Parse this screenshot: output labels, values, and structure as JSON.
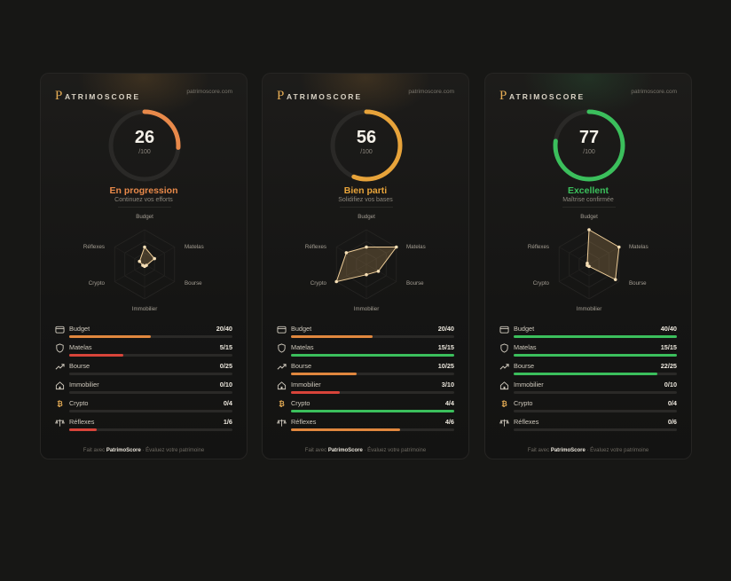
{
  "brand": {
    "name": "ATRIMOSCORE",
    "mark": "P",
    "site": "patrimoscore.com"
  },
  "colors": {
    "orange": "#e0873e",
    "amber": "#e7a33a",
    "green": "#3bbf5c",
    "red": "#d8443a",
    "track": "#2a2927"
  },
  "cards": [
    {
      "score": "26",
      "denominator": "/100",
      "score_value": 26,
      "status": "En progression",
      "status_color": "#e8894a",
      "subtitle": "Continuez vos efforts",
      "radar_labels": [
        "Budget",
        "Matelas",
        "Bourse",
        "Immobilier",
        "Crypto",
        "Réflexes"
      ],
      "radar_values": [
        0.5,
        0.33,
        0,
        0,
        0,
        0.17
      ],
      "metrics": [
        {
          "icon": "wallet-icon",
          "label": "Budget",
          "value": "20/40",
          "fraction": 0.5,
          "color": "#e0873e"
        },
        {
          "icon": "shield-icon",
          "label": "Matelas",
          "value": "5/15",
          "fraction": 0.333,
          "color": "#d8443a"
        },
        {
          "icon": "trend-up-icon",
          "label": "Bourse",
          "value": "0/25",
          "fraction": 0,
          "color": "#d8443a"
        },
        {
          "icon": "home-icon",
          "label": "Immobilier",
          "value": "0/10",
          "fraction": 0,
          "color": "#d8443a"
        },
        {
          "icon": "bitcoin-icon",
          "label": "Crypto",
          "value": "0/4",
          "fraction": 0,
          "color": "#d8443a"
        },
        {
          "icon": "scale-icon",
          "label": "Réflexes",
          "value": "1/6",
          "fraction": 0.167,
          "color": "#d8443a"
        }
      ],
      "footer": {
        "prefix": "Fait avec",
        "brand": "PatrimoScore",
        "suffix": "· Évaluez votre patrimoine"
      }
    },
    {
      "score": "56",
      "denominator": "/100",
      "score_value": 56,
      "status": "Bien parti",
      "status_color": "#e7a33a",
      "subtitle": "Solidifiez vos bases",
      "radar_labels": [
        "Budget",
        "Matelas",
        "Bourse",
        "Immobilier",
        "Crypto",
        "Réflexes"
      ],
      "radar_values": [
        0.5,
        1,
        0.4,
        0.3,
        1,
        0.67
      ],
      "metrics": [
        {
          "icon": "wallet-icon",
          "label": "Budget",
          "value": "20/40",
          "fraction": 0.5,
          "color": "#e0873e"
        },
        {
          "icon": "shield-icon",
          "label": "Matelas",
          "value": "15/15",
          "fraction": 1,
          "color": "#3bbf5c"
        },
        {
          "icon": "trend-up-icon",
          "label": "Bourse",
          "value": "10/25",
          "fraction": 0.4,
          "color": "#e0873e"
        },
        {
          "icon": "home-icon",
          "label": "Immobilier",
          "value": "3/10",
          "fraction": 0.3,
          "color": "#d8443a"
        },
        {
          "icon": "bitcoin-icon",
          "label": "Crypto",
          "value": "4/4",
          "fraction": 1,
          "color": "#3bbf5c"
        },
        {
          "icon": "scale-icon",
          "label": "Réflexes",
          "value": "4/6",
          "fraction": 0.667,
          "color": "#e0873e"
        }
      ],
      "footer": {
        "prefix": "Fait avec",
        "brand": "PatrimoScore",
        "suffix": "· Évaluez votre patrimoine"
      }
    },
    {
      "score": "77",
      "denominator": "/100",
      "score_value": 77,
      "status": "Excellent",
      "status_color": "#3bbf5c",
      "subtitle": "Maîtrise confirmée",
      "radar_labels": [
        "Budget",
        "Matelas",
        "Bourse",
        "Immobilier",
        "Crypto",
        "Réflexes"
      ],
      "radar_values": [
        1,
        1,
        0.88,
        0,
        0,
        0
      ],
      "metrics": [
        {
          "icon": "wallet-icon",
          "label": "Budget",
          "value": "40/40",
          "fraction": 1,
          "color": "#3bbf5c"
        },
        {
          "icon": "shield-icon",
          "label": "Matelas",
          "value": "15/15",
          "fraction": 1,
          "color": "#3bbf5c"
        },
        {
          "icon": "trend-up-icon",
          "label": "Bourse",
          "value": "22/25",
          "fraction": 0.88,
          "color": "#3bbf5c"
        },
        {
          "icon": "home-icon",
          "label": "Immobilier",
          "value": "0/10",
          "fraction": 0,
          "color": "#d8443a"
        },
        {
          "icon": "bitcoin-icon",
          "label": "Crypto",
          "value": "0/4",
          "fraction": 0,
          "color": "#d8443a"
        },
        {
          "icon": "scale-icon",
          "label": "Réflexes",
          "value": "0/6",
          "fraction": 0,
          "color": "#d8443a"
        }
      ],
      "footer": {
        "prefix": "Fait avec",
        "brand": "PatrimoScore",
        "suffix": "· Évaluez votre patrimoine"
      }
    }
  ]
}
